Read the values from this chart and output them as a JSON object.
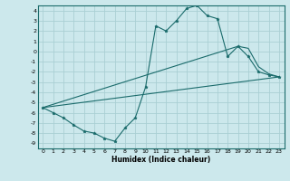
{
  "xlabel": "Humidex (Indice chaleur)",
  "bg_color": "#cce8ec",
  "grid_color": "#aacfd4",
  "line_color": "#1a6b6b",
  "x_humidex": [
    0,
    1,
    2,
    3,
    4,
    5,
    6,
    7,
    8,
    9,
    10,
    11,
    12,
    13,
    14,
    15,
    16,
    17,
    18,
    19,
    20,
    21,
    22,
    23
  ],
  "y_main": [
    -5.5,
    -6.0,
    -6.5,
    -7.2,
    -7.8,
    -8.0,
    -8.5,
    -8.8,
    -7.5,
    -6.5,
    -3.5,
    2.5,
    2.0,
    3.0,
    4.2,
    4.5,
    3.5,
    3.2,
    -0.5,
    0.5,
    -0.5,
    -2.0,
    -2.3,
    -2.5
  ],
  "xlim": [
    -0.5,
    23.5
  ],
  "ylim": [
    -9.5,
    4.5
  ],
  "yticks": [
    4,
    3,
    2,
    1,
    0,
    -1,
    -2,
    -3,
    -4,
    -5,
    -6,
    -7,
    -8,
    -9
  ],
  "xticks": [
    0,
    1,
    2,
    3,
    4,
    5,
    6,
    7,
    8,
    9,
    10,
    11,
    12,
    13,
    14,
    15,
    16,
    17,
    18,
    19,
    20,
    21,
    22,
    23
  ],
  "trend1_x": [
    0,
    23
  ],
  "trend1_y": [
    -5.5,
    -2.5
  ],
  "trend2_x": [
    0,
    19,
    20,
    21,
    22,
    23
  ],
  "trend2_y": [
    -5.5,
    0.5,
    0.3,
    -1.5,
    -2.2,
    -2.5
  ]
}
